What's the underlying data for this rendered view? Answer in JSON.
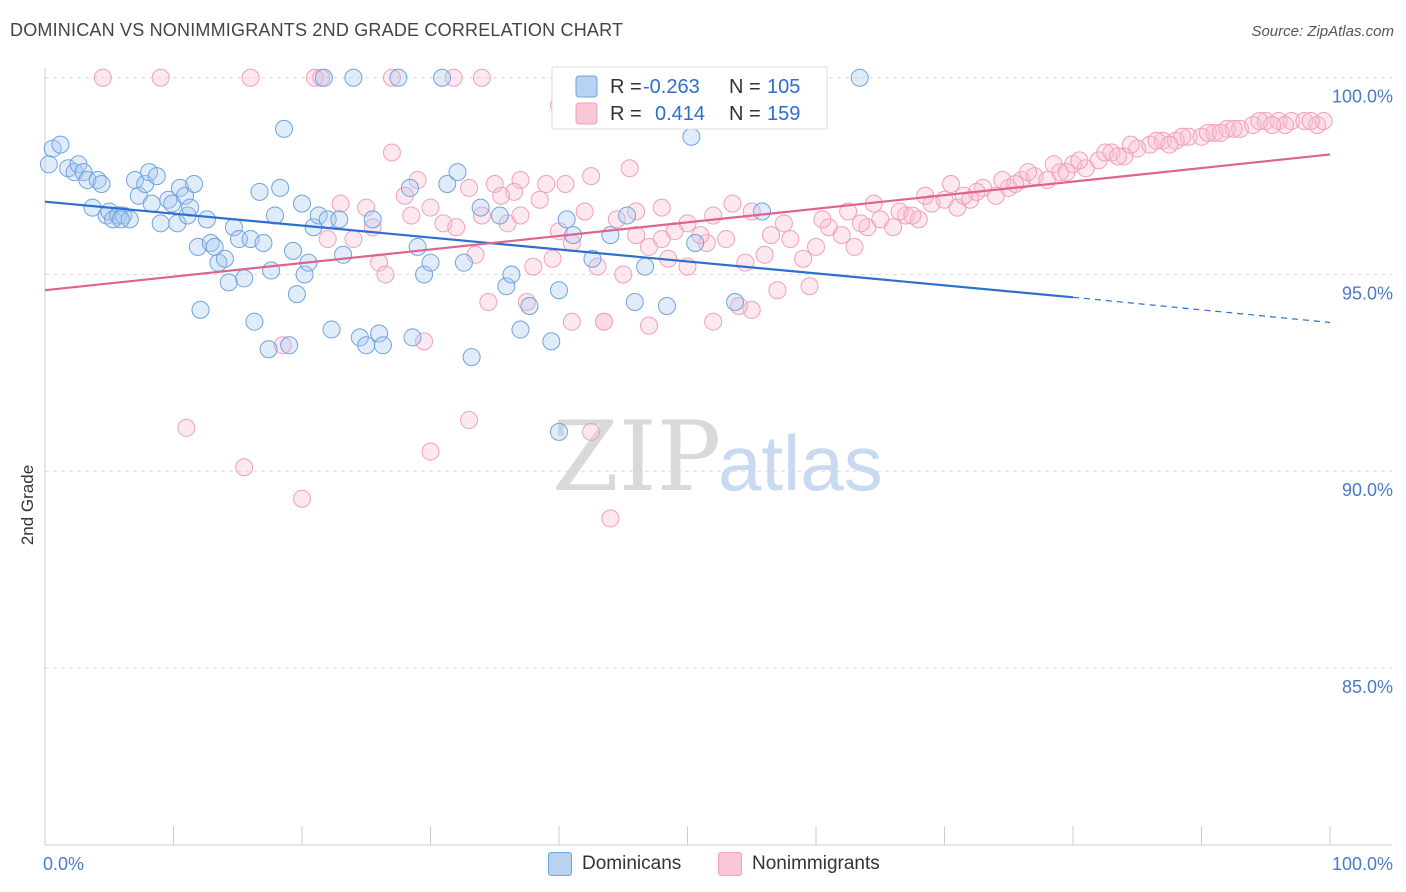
{
  "header": {
    "title": "DOMINICAN VS NONIMMIGRANTS 2ND GRADE CORRELATION CHART",
    "source": "Source: ZipAtlas.com"
  },
  "watermark": {
    "zip": "ZIP",
    "atlas": "atlas"
  },
  "legend": {
    "r_label": "R =",
    "n_label": "N =",
    "rows": [
      {
        "r": "-0.263",
        "n": "105"
      },
      {
        "r": "0.414",
        "n": "159"
      }
    ]
  },
  "chart_data": {
    "type": "scatter",
    "title": "DOMINICAN VS NONIMMIGRANTS 2ND GRADE CORRELATION CHART",
    "xlabel": "",
    "ylabel": "2nd Grade",
    "xlim": [
      0,
      100
    ],
    "ylim": [
      80.5,
      100.4
    ],
    "x_tick_labels": [
      "0.0%",
      "100.0%"
    ],
    "y_ticks": [
      100,
      95,
      90,
      85
    ],
    "y_tick_labels": [
      "100.0%",
      "95.0%",
      "90.0%",
      "85.0%"
    ],
    "grid": "horizontal dashed",
    "legend_position": "bottom-center",
    "colors": {
      "blue": "#6fa3e0",
      "blue_line": "#2c6fcf",
      "pink": "#f0a0bb",
      "pink_line": "#e0628e"
    },
    "series": [
      {
        "name": "Dominicans",
        "color": "#6fa3e0",
        "trend": {
          "x0": 0,
          "y0": 96.85,
          "x1": 80,
          "y1": 94.42,
          "dash_to_x": 100,
          "dash_to_y": 93.78
        },
        "points": [
          [
            0.3,
            97.8
          ],
          [
            0.6,
            98.2
          ],
          [
            1.2,
            98.3
          ],
          [
            1.8,
            97.7
          ],
          [
            2.3,
            97.6
          ],
          [
            2.6,
            97.8
          ],
          [
            3.0,
            97.6
          ],
          [
            3.3,
            97.4
          ],
          [
            3.7,
            96.7
          ],
          [
            4.1,
            97.4
          ],
          [
            4.4,
            97.3
          ],
          [
            4.8,
            96.5
          ],
          [
            5.0,
            96.6
          ],
          [
            5.3,
            96.4
          ],
          [
            5.7,
            96.5
          ],
          [
            6.1,
            96.5
          ],
          [
            6.6,
            96.4
          ],
          [
            7.0,
            97.4
          ],
          [
            7.3,
            97.0
          ],
          [
            7.8,
            97.3
          ],
          [
            8.1,
            97.6
          ],
          [
            8.3,
            96.8
          ],
          [
            8.7,
            97.5
          ],
          [
            9.0,
            96.3
          ],
          [
            9.6,
            96.9
          ],
          [
            9.9,
            96.8
          ],
          [
            10.3,
            96.3
          ],
          [
            10.5,
            97.2
          ],
          [
            10.9,
            97.0
          ],
          [
            11.1,
            96.5
          ],
          [
            11.3,
            96.7
          ],
          [
            11.9,
            95.7
          ],
          [
            12.1,
            94.1
          ],
          [
            12.6,
            96.4
          ],
          [
            12.9,
            95.8
          ],
          [
            13.2,
            95.7
          ],
          [
            13.5,
            95.3
          ],
          [
            14.0,
            95.4
          ],
          [
            14.3,
            94.8
          ],
          [
            14.7,
            96.2
          ],
          [
            15.1,
            95.9
          ],
          [
            15.5,
            94.9
          ],
          [
            16.0,
            95.9
          ],
          [
            16.3,
            93.8
          ],
          [
            16.7,
            97.1
          ],
          [
            17.0,
            95.8
          ],
          [
            17.4,
            93.1
          ],
          [
            17.6,
            95.1
          ],
          [
            17.9,
            96.5
          ],
          [
            18.3,
            97.2
          ],
          [
            18.6,
            98.7
          ],
          [
            19.0,
            93.2
          ],
          [
            19.3,
            95.6
          ],
          [
            19.6,
            94.5
          ],
          [
            20.0,
            96.8
          ],
          [
            20.2,
            95.0
          ],
          [
            20.5,
            95.3
          ],
          [
            20.9,
            96.2
          ],
          [
            21.3,
            96.5
          ],
          [
            21.7,
            100.0
          ],
          [
            22.0,
            96.4
          ],
          [
            22.3,
            93.6
          ],
          [
            22.9,
            96.4
          ],
          [
            23.2,
            95.5
          ],
          [
            24.0,
            100.0
          ],
          [
            24.5,
            93.4
          ],
          [
            25.0,
            93.2
          ],
          [
            25.5,
            96.4
          ],
          [
            26.0,
            93.5
          ],
          [
            26.3,
            93.2
          ],
          [
            27.5,
            100.0
          ],
          [
            28.4,
            97.2
          ],
          [
            28.6,
            93.4
          ],
          [
            29.0,
            95.7
          ],
          [
            29.5,
            95.0
          ],
          [
            30.0,
            95.3
          ],
          [
            30.9,
            100.0
          ],
          [
            31.3,
            97.3
          ],
          [
            32.1,
            97.6
          ],
          [
            32.6,
            95.3
          ],
          [
            33.2,
            92.9
          ],
          [
            33.9,
            96.7
          ],
          [
            35.4,
            96.5
          ],
          [
            35.9,
            94.7
          ],
          [
            36.3,
            95.0
          ],
          [
            37.0,
            93.6
          ],
          [
            37.7,
            94.2
          ],
          [
            39.4,
            93.3
          ],
          [
            40.0,
            94.6
          ],
          [
            40.6,
            96.4
          ],
          [
            41.1,
            96.0
          ],
          [
            42.6,
            95.4
          ],
          [
            44.0,
            96.0
          ],
          [
            45.3,
            96.5
          ],
          [
            45.9,
            94.3
          ],
          [
            46.7,
            95.2
          ],
          [
            48.4,
            94.2
          ],
          [
            50.3,
            98.5
          ],
          [
            50.6,
            95.8
          ],
          [
            53.7,
            94.3
          ],
          [
            55.8,
            96.6
          ],
          [
            63.4,
            100.0
          ],
          [
            40.0,
            91.0
          ],
          [
            11.6,
            97.3
          ],
          [
            5.9,
            96.4
          ]
        ]
      },
      {
        "name": "Nonimmigrants",
        "color": "#f0a0bb",
        "trend": {
          "x0": 0,
          "y0": 94.6,
          "x1": 100,
          "y1": 98.05
        },
        "points": [
          [
            4.5,
            100.0
          ],
          [
            9.0,
            100.0
          ],
          [
            16.0,
            100.0
          ],
          [
            21.0,
            100.0
          ],
          [
            21.5,
            100.0
          ],
          [
            27.0,
            100.0
          ],
          [
            34.0,
            100.0
          ],
          [
            31.8,
            100.0
          ],
          [
            40.0,
            99.3
          ],
          [
            42.0,
            99.1
          ],
          [
            11.0,
            91.1
          ],
          [
            15.5,
            90.1
          ],
          [
            20.0,
            89.3
          ],
          [
            30.0,
            90.5
          ],
          [
            33.0,
            91.3
          ],
          [
            42.5,
            91.0
          ],
          [
            44.0,
            88.8
          ],
          [
            18.5,
            93.2
          ],
          [
            29.5,
            93.3
          ],
          [
            34.5,
            94.3
          ],
          [
            37.5,
            94.3
          ],
          [
            41.0,
            93.8
          ],
          [
            43.5,
            93.8
          ],
          [
            47.0,
            93.7
          ],
          [
            52.0,
            93.8
          ],
          [
            55.0,
            94.1
          ],
          [
            57.0,
            94.6
          ],
          [
            59.5,
            94.7
          ],
          [
            27.0,
            98.1
          ],
          [
            29.0,
            97.4
          ],
          [
            33.0,
            97.2
          ],
          [
            35.0,
            97.3
          ],
          [
            37.0,
            97.4
          ],
          [
            39.0,
            97.3
          ],
          [
            40.5,
            97.3
          ],
          [
            42.0,
            96.6
          ],
          [
            44.5,
            96.4
          ],
          [
            46.0,
            96.6
          ],
          [
            48.0,
            96.7
          ],
          [
            50.0,
            96.3
          ],
          [
            52.0,
            96.5
          ],
          [
            23.0,
            96.8
          ],
          [
            25.0,
            96.7
          ],
          [
            26.0,
            95.3
          ],
          [
            28.0,
            97.0
          ],
          [
            30.0,
            96.7
          ],
          [
            32.0,
            96.2
          ],
          [
            34.0,
            96.5
          ],
          [
            36.0,
            96.3
          ],
          [
            38.0,
            95.2
          ],
          [
            39.5,
            95.4
          ],
          [
            41.0,
            95.8
          ],
          [
            43.0,
            95.2
          ],
          [
            45.0,
            95.0
          ],
          [
            47.0,
            95.7
          ],
          [
            48.5,
            95.4
          ],
          [
            50.0,
            95.2
          ],
          [
            51.5,
            95.8
          ],
          [
            53.0,
            95.9
          ],
          [
            54.5,
            95.3
          ],
          [
            56.0,
            95.5
          ],
          [
            57.5,
            96.3
          ],
          [
            59.0,
            95.4
          ],
          [
            60.0,
            95.7
          ],
          [
            61.0,
            96.2
          ],
          [
            62.0,
            96.0
          ],
          [
            63.0,
            95.7
          ],
          [
            64.0,
            96.2
          ],
          [
            65.0,
            96.4
          ],
          [
            66.0,
            96.2
          ],
          [
            67.0,
            96.5
          ],
          [
            68.0,
            96.4
          ],
          [
            69.0,
            96.8
          ],
          [
            70.0,
            96.9
          ],
          [
            71.0,
            96.7
          ],
          [
            72.0,
            96.9
          ],
          [
            73.0,
            97.2
          ],
          [
            74.0,
            97.0
          ],
          [
            75.0,
            97.2
          ],
          [
            76.0,
            97.4
          ],
          [
            77.0,
            97.5
          ],
          [
            78.0,
            97.4
          ],
          [
            79.0,
            97.6
          ],
          [
            80.0,
            97.8
          ],
          [
            81.0,
            97.7
          ],
          [
            82.0,
            97.9
          ],
          [
            83.0,
            98.1
          ],
          [
            84.0,
            98.0
          ],
          [
            85.0,
            98.2
          ],
          [
            86.0,
            98.3
          ],
          [
            87.0,
            98.4
          ],
          [
            88.0,
            98.4
          ],
          [
            89.0,
            98.5
          ],
          [
            90.0,
            98.5
          ],
          [
            91.0,
            98.6
          ],
          [
            92.0,
            98.7
          ],
          [
            93.0,
            98.7
          ],
          [
            94.0,
            98.8
          ],
          [
            95.0,
            98.9
          ],
          [
            96.0,
            98.9
          ],
          [
            97.0,
            98.9
          ],
          [
            98.0,
            98.9
          ],
          [
            99.0,
            98.8
          ],
          [
            99.5,
            98.9
          ],
          [
            24.0,
            95.9
          ],
          [
            25.5,
            96.2
          ],
          [
            26.5,
            95.0
          ],
          [
            28.5,
            96.5
          ],
          [
            31.0,
            96.3
          ],
          [
            33.5,
            95.5
          ],
          [
            36.5,
            97.1
          ],
          [
            38.5,
            96.9
          ],
          [
            40.0,
            96.1
          ],
          [
            42.5,
            97.5
          ],
          [
            45.5,
            97.7
          ],
          [
            49.0,
            96.1
          ],
          [
            51.0,
            96.0
          ],
          [
            53.5,
            96.8
          ],
          [
            55.0,
            96.6
          ],
          [
            58.0,
            95.9
          ],
          [
            60.5,
            96.4
          ],
          [
            62.5,
            96.6
          ],
          [
            64.5,
            96.8
          ],
          [
            66.5,
            96.6
          ],
          [
            68.5,
            97.0
          ],
          [
            70.5,
            97.3
          ],
          [
            72.5,
            97.1
          ],
          [
            74.5,
            97.4
          ],
          [
            76.5,
            97.6
          ],
          [
            78.5,
            97.8
          ],
          [
            80.5,
            97.9
          ],
          [
            82.5,
            98.1
          ],
          [
            84.5,
            98.3
          ],
          [
            86.5,
            98.4
          ],
          [
            88.5,
            98.5
          ],
          [
            90.5,
            98.6
          ],
          [
            92.5,
            98.7
          ],
          [
            94.5,
            98.9
          ],
          [
            96.5,
            98.8
          ],
          [
            98.5,
            98.9
          ],
          [
            43.5,
            93.8
          ],
          [
            54.0,
            94.2
          ],
          [
            35.5,
            97.0
          ],
          [
            37.0,
            96.5
          ],
          [
            46.0,
            96.0
          ],
          [
            56.5,
            96.0
          ],
          [
            63.5,
            96.3
          ],
          [
            67.5,
            96.5
          ],
          [
            71.5,
            97.0
          ],
          [
            75.5,
            97.3
          ],
          [
            79.5,
            97.6
          ],
          [
            83.5,
            98.0
          ],
          [
            87.5,
            98.3
          ],
          [
            91.5,
            98.6
          ],
          [
            95.5,
            98.8
          ],
          [
            22.0,
            95.9
          ],
          [
            48.0,
            95.9
          ]
        ]
      }
    ]
  }
}
